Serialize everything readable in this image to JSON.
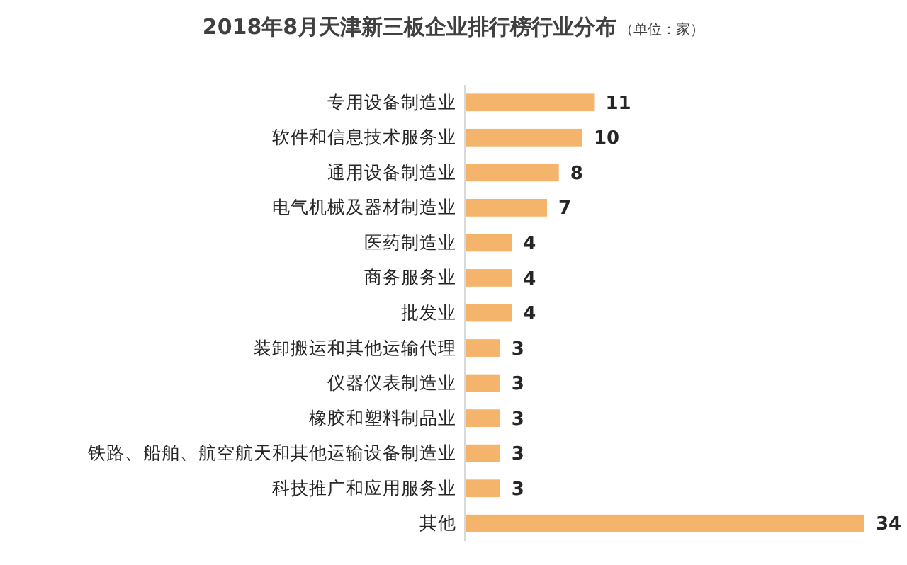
{
  "chart_data": {
    "type": "bar",
    "orientation": "horizontal",
    "title": "2018年8月天津新三板企业排行榜行业分布",
    "subtitle": "（单位：家）",
    "categories": [
      "专用设备制造业",
      "软件和信息技术服务业",
      "通用设备制造业",
      "电气机械及器材制造业",
      "医药制造业",
      "商务服务业",
      "批发业",
      "装卸搬运和其他运输代理",
      "仪器仪表制造业",
      "橡胶和塑料制品业",
      "铁路、船舶、航空航天和其他运输设备制造业",
      "科技推广和应用服务业",
      "其他"
    ],
    "values": [
      11,
      10,
      8,
      7,
      4,
      4,
      4,
      3,
      3,
      3,
      3,
      3,
      34
    ],
    "color": "#f4b46c",
    "data_labels": true
  }
}
